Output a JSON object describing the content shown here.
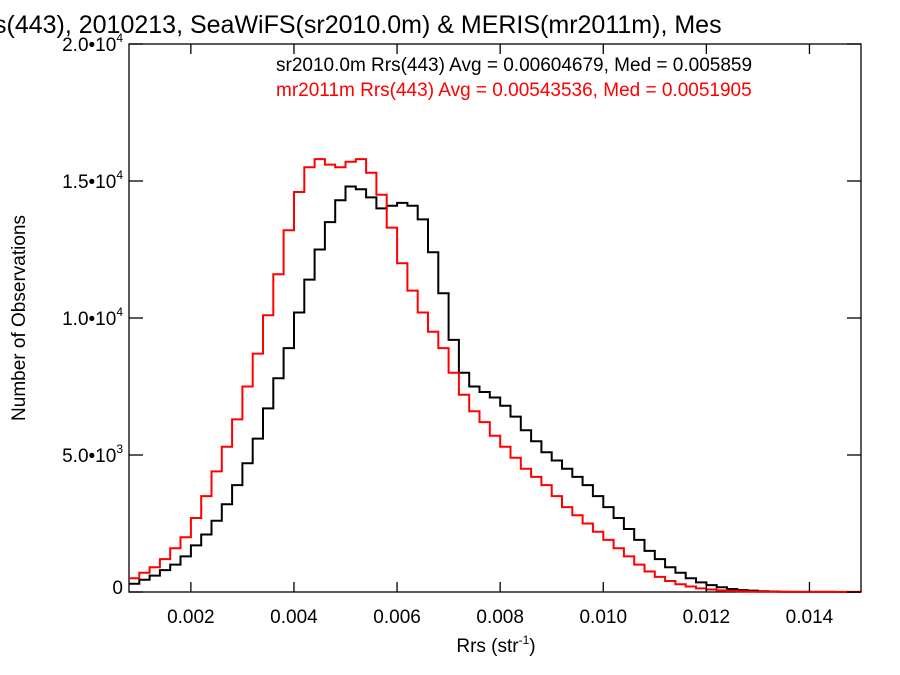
{
  "chart_data": {
    "type": "line",
    "title": "s(443), 2010213, SeaWiFS(sr2010.0m) & MERIS(mr2011m), Mes",
    "xlabel": "Rrs (str",
    "xlabel_sup": "-1",
    "xlabel_close": ")",
    "ylabel": "Number of Observations",
    "xlim": [
      0.0008,
      0.015
    ],
    "ylim": [
      0,
      20000
    ],
    "grid": false,
    "x_ticks": [
      {
        "value": 0.002,
        "label": "0.002"
      },
      {
        "value": 0.004,
        "label": "0.004"
      },
      {
        "value": 0.006,
        "label": "0.006"
      },
      {
        "value": 0.008,
        "label": "0.008"
      },
      {
        "value": 0.01,
        "label": "0.010"
      },
      {
        "value": 0.012,
        "label": "0.012"
      },
      {
        "value": 0.014,
        "label": "0.014"
      }
    ],
    "y_ticks": [
      {
        "value": 0,
        "mant": "0",
        "exp": ""
      },
      {
        "value": 5000,
        "mant": "5.0•10",
        "exp": "3"
      },
      {
        "value": 10000,
        "mant": "1.0•10",
        "exp": "4"
      },
      {
        "value": 15000,
        "mant": "1.5•10",
        "exp": "4"
      },
      {
        "value": 20000,
        "mant": "2.0•10",
        "exp": "4"
      }
    ],
    "annotations": [
      {
        "text": "sr2010.0m Rrs(443) Avg = 0.00604679, Med = 0.005859",
        "color": "#000000"
      },
      {
        "text": "mr2011m Rrs(443) Avg = 0.00543536, Med = 0.0051905",
        "color": "#ff0000"
      }
    ],
    "series": [
      {
        "color": "#000000",
        "x": [
          0.0008,
          0.001,
          0.0012,
          0.0014,
          0.0016,
          0.0018,
          0.002,
          0.0022,
          0.0024,
          0.0026,
          0.0028,
          0.003,
          0.0032,
          0.0034,
          0.0036,
          0.0038,
          0.004,
          0.0042,
          0.0044,
          0.0046,
          0.0048,
          0.005,
          0.0052,
          0.0054,
          0.0056,
          0.0058,
          0.006,
          0.0062,
          0.0064,
          0.0066,
          0.0068,
          0.007,
          0.0072,
          0.0074,
          0.0076,
          0.0078,
          0.008,
          0.0082,
          0.0084,
          0.0086,
          0.0088,
          0.009,
          0.0092,
          0.0094,
          0.0096,
          0.0098,
          0.01,
          0.0102,
          0.0104,
          0.0106,
          0.0108,
          0.011,
          0.0112,
          0.0114,
          0.0116,
          0.0118,
          0.012,
          0.0122,
          0.0124,
          0.0126,
          0.0128,
          0.013,
          0.0132,
          0.0134,
          0.0136,
          0.0138,
          0.014,
          0.0145,
          0.015
        ],
        "values": [
          300,
          450,
          600,
          800,
          1000,
          1300,
          1700,
          2100,
          2600,
          3200,
          3900,
          4700,
          5600,
          6700,
          7800,
          8900,
          10200,
          11400,
          12500,
          13500,
          14300,
          14800,
          14700,
          14400,
          14000,
          14100,
          14200,
          14100,
          13600,
          12400,
          10900,
          9200,
          8000,
          7500,
          7300,
          7100,
          6800,
          6400,
          5900,
          5500,
          5100,
          4800,
          4500,
          4200,
          3900,
          3500,
          3100,
          2700,
          2300,
          1900,
          1500,
          1200,
          900,
          700,
          500,
          350,
          250,
          170,
          110,
          70,
          50,
          30,
          20,
          10,
          5,
          3,
          2,
          0,
          0
        ]
      },
      {
        "color": "#ff0000",
        "x": [
          0.0008,
          0.001,
          0.0012,
          0.0014,
          0.0016,
          0.0018,
          0.002,
          0.0022,
          0.0024,
          0.0026,
          0.0028,
          0.003,
          0.0032,
          0.0034,
          0.0036,
          0.0038,
          0.004,
          0.0042,
          0.0044,
          0.0046,
          0.0048,
          0.005,
          0.0052,
          0.0054,
          0.0056,
          0.0058,
          0.006,
          0.0062,
          0.0064,
          0.0066,
          0.0068,
          0.007,
          0.0072,
          0.0074,
          0.0076,
          0.0078,
          0.008,
          0.0082,
          0.0084,
          0.0086,
          0.0088,
          0.009,
          0.0092,
          0.0094,
          0.0096,
          0.0098,
          0.01,
          0.0102,
          0.0104,
          0.0106,
          0.0108,
          0.011,
          0.0112,
          0.0114,
          0.0116,
          0.0118,
          0.012,
          0.0122,
          0.0124,
          0.0126,
          0.0128,
          0.013,
          0.0135,
          0.014,
          0.015
        ],
        "values": [
          500,
          700,
          900,
          1200,
          1600,
          2000,
          2700,
          3500,
          4400,
          5300,
          6300,
          7500,
          8700,
          10100,
          11600,
          13200,
          14600,
          15500,
          15800,
          15600,
          15500,
          15700,
          15800,
          15300,
          14500,
          13300,
          12000,
          11000,
          10200,
          9500,
          8900,
          8000,
          7200,
          6600,
          6200,
          5700,
          5300,
          4900,
          4500,
          4200,
          3900,
          3500,
          3100,
          2800,
          2500,
          2200,
          1900,
          1600,
          1300,
          1000,
          750,
          550,
          400,
          280,
          200,
          130,
          90,
          60,
          40,
          25,
          15,
          10,
          5,
          2,
          0
        ]
      }
    ]
  }
}
